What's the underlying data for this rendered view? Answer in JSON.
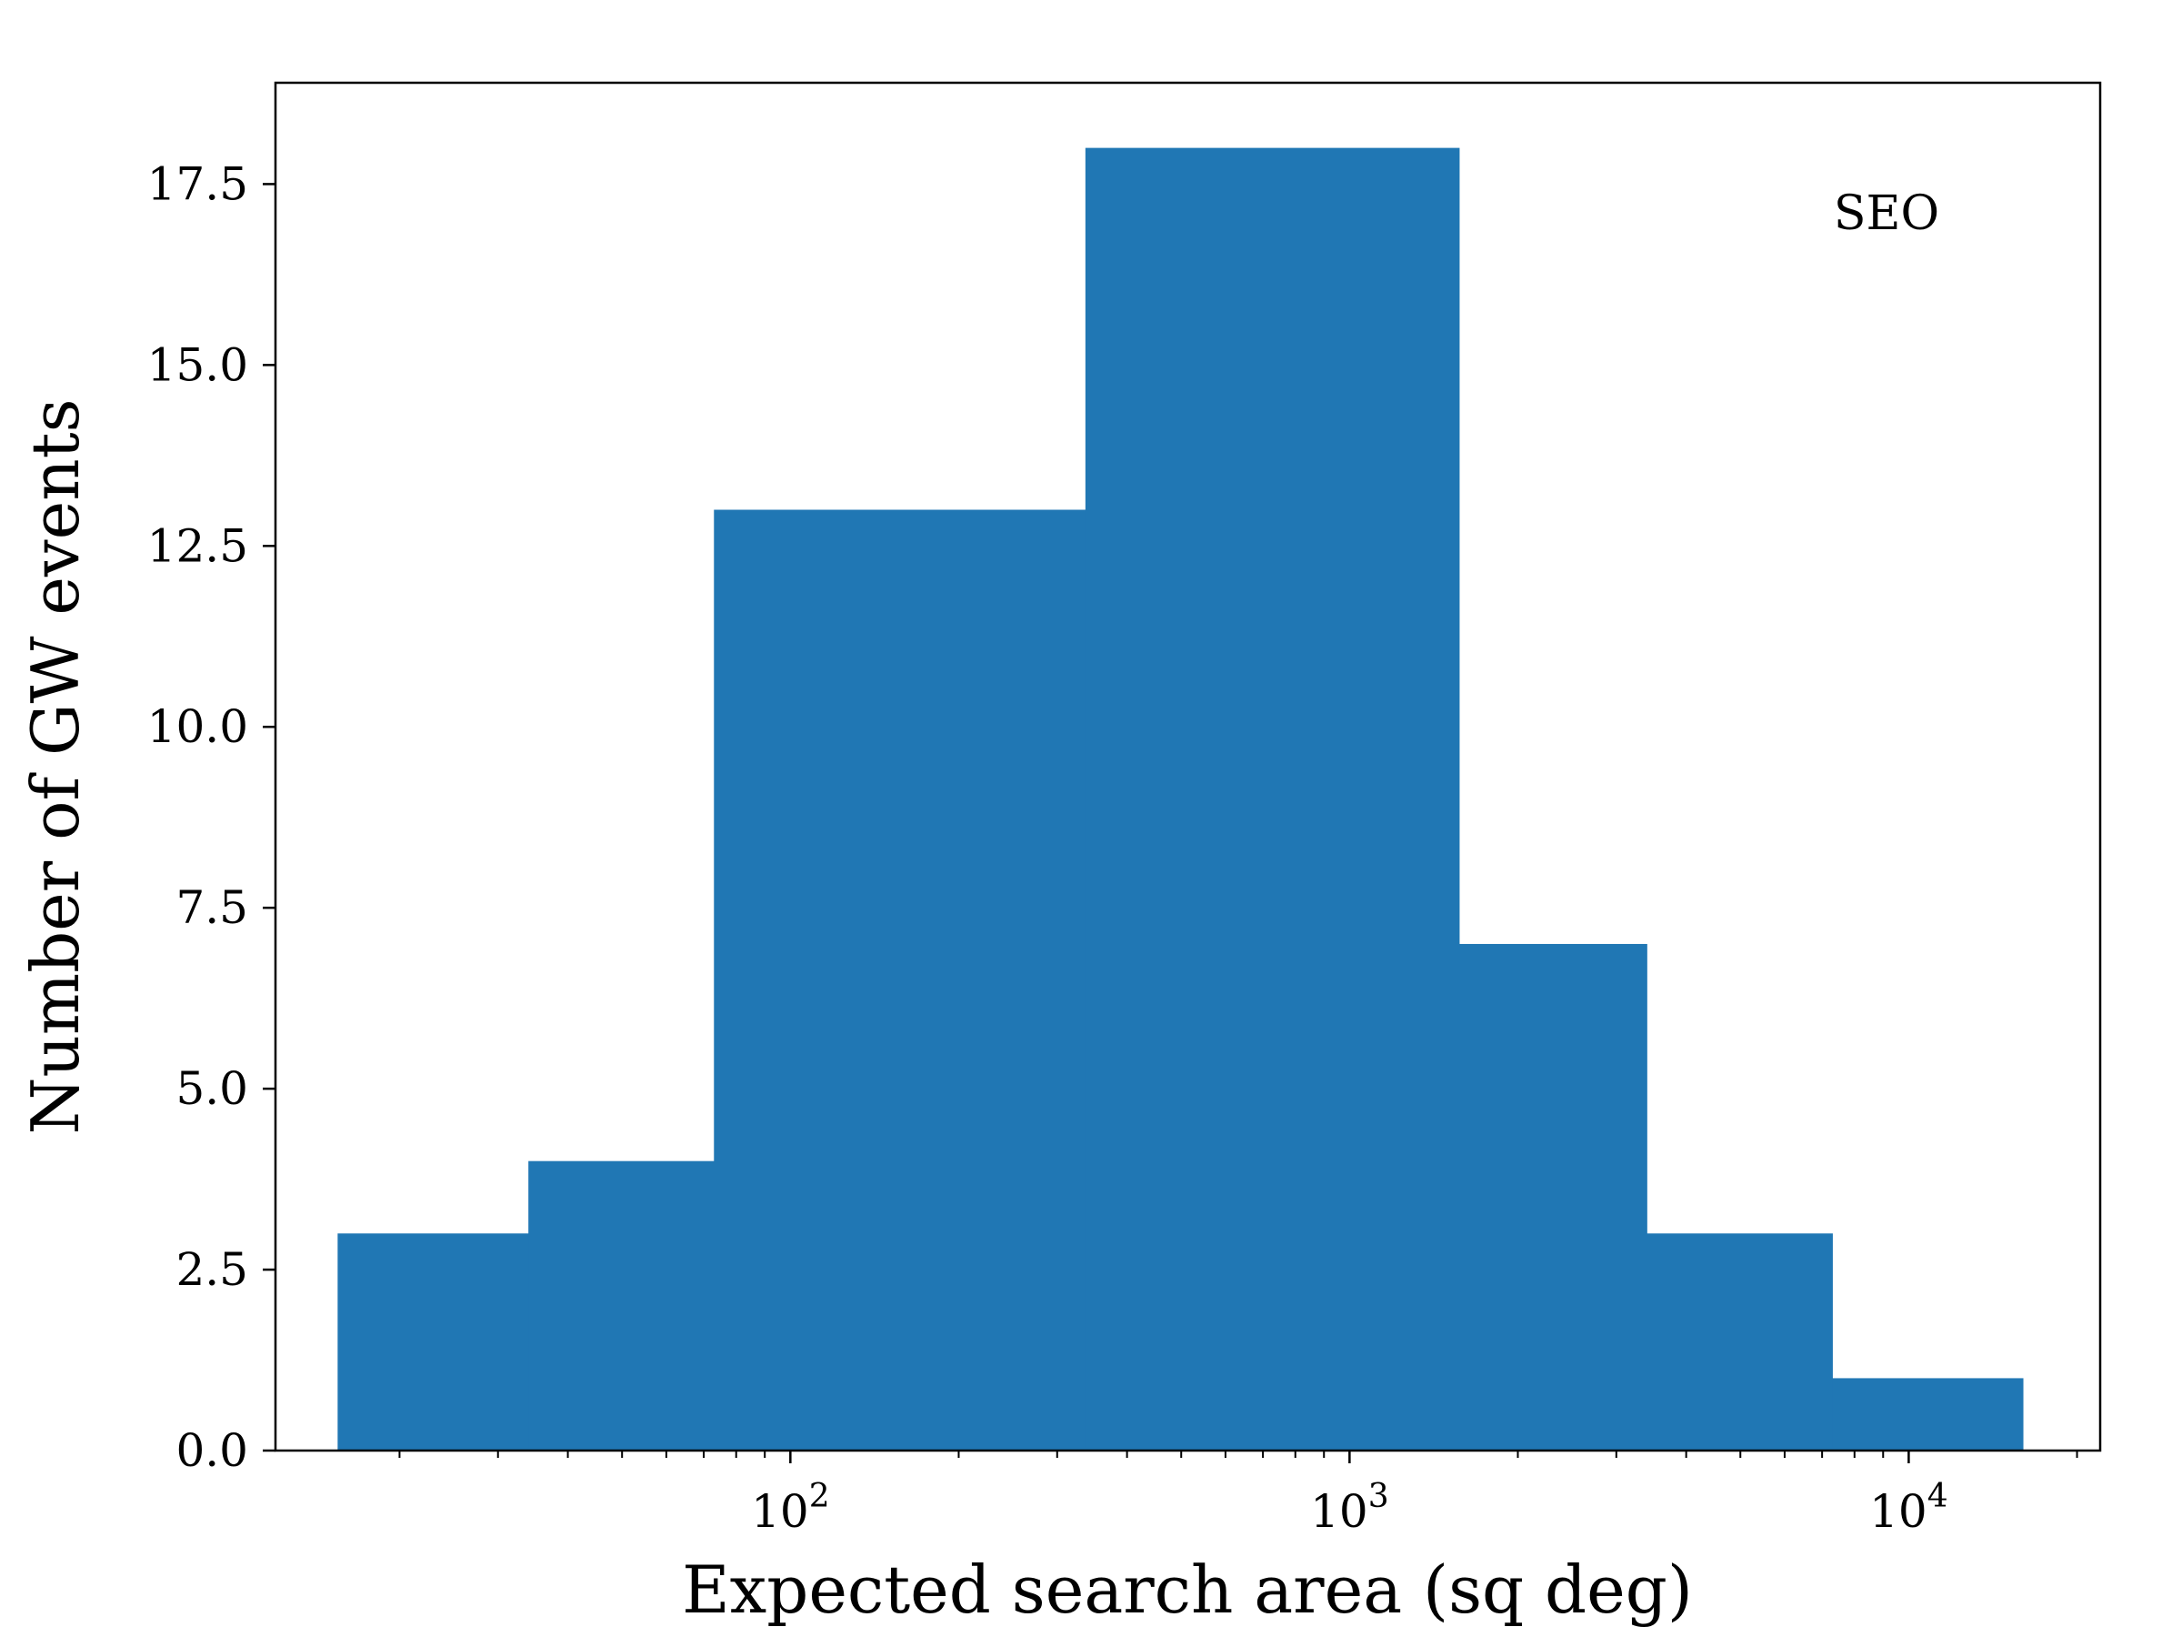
{
  "chart_data": {
    "type": "bar",
    "subtype": "histogram",
    "x_scale": "log",
    "xlabel": "Expected search area (sq deg)",
    "ylabel": "Number of GW events",
    "annotation": "SEO",
    "xlim": [
      12,
      22000
    ],
    "ylim": [
      0,
      18.9
    ],
    "bin_edges": [
      15.5,
      34,
      73,
      337,
      1570,
      3400,
      7300,
      16000
    ],
    "values": [
      3,
      4,
      13,
      18,
      7,
      3,
      1
    ],
    "y_ticks": [
      "0.0",
      "2.5",
      "5.0",
      "7.5",
      "10.0",
      "12.5",
      "15.0",
      "17.5"
    ],
    "x_ticks": [
      {
        "base": "10",
        "exp": "2",
        "value": 100
      },
      {
        "base": "10",
        "exp": "3",
        "value": 1000
      },
      {
        "base": "10",
        "exp": "4",
        "value": 10000
      }
    ],
    "bar_color": "#2077b4",
    "grid": false
  }
}
